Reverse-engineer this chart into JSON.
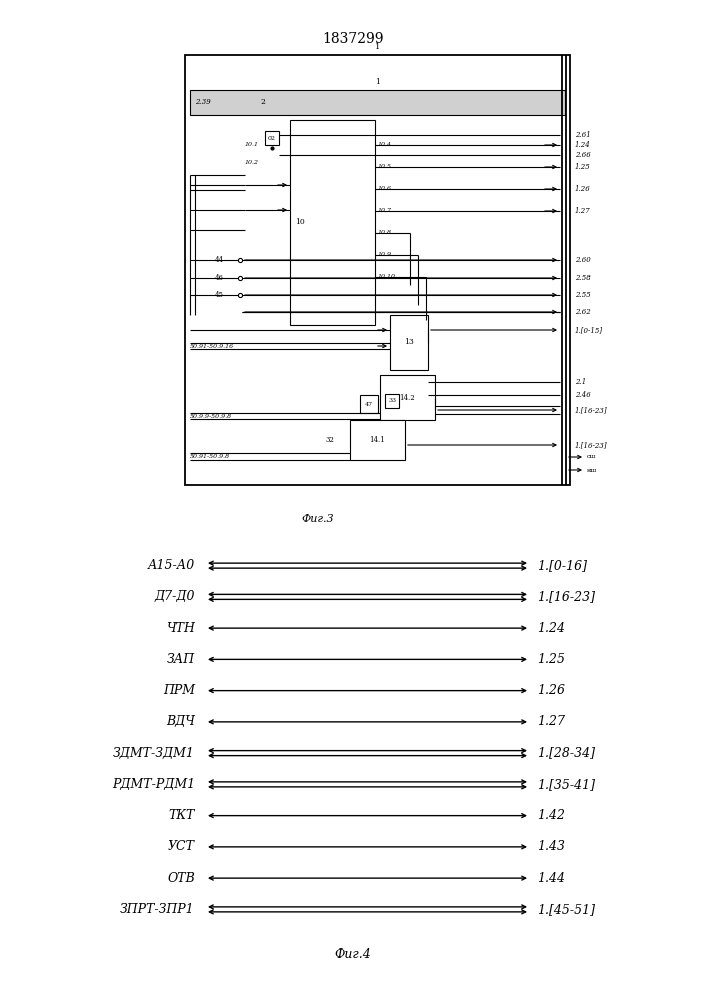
{
  "title_number": "1837299",
  "fig3_label": "Фиг.3",
  "fig4_label": "Фиг.4",
  "fig4_rows": [
    {
      "left": "А15-А0",
      "right": "1.[0-16]",
      "bus": true
    },
    {
      "left": "Д7-Д0",
      "right": "1.[16-23]",
      "bus": true
    },
    {
      "left": "ЧТН",
      "right": "1.24",
      "bus": false
    },
    {
      "left": "ЗАП",
      "right": "1.25",
      "bus": false
    },
    {
      "left": "ПРМ",
      "right": "1.26",
      "bus": false
    },
    {
      "left": "ВДЧ",
      "right": "1.27",
      "bus": false
    },
    {
      "left": "ЗДМТ-ЗДМ1",
      "right": "1.[28-34]",
      "bus": true
    },
    {
      "left": "РДМТ-РДМ1",
      "right": "1.[35-41]",
      "bus": true
    },
    {
      "left": "ТКТ",
      "right": "1.42",
      "bus": false
    },
    {
      "left": "УСТ",
      "right": "1.43",
      "bus": false
    },
    {
      "left": "ОТВ",
      "right": "1.44",
      "bus": false
    },
    {
      "left": "ЗПРТ-ЗПР1",
      "right": "1.[45-51]",
      "bus": true
    }
  ],
  "line_color": "#000000",
  "bg_color": "#ffffff",
  "text_color": "#000000"
}
